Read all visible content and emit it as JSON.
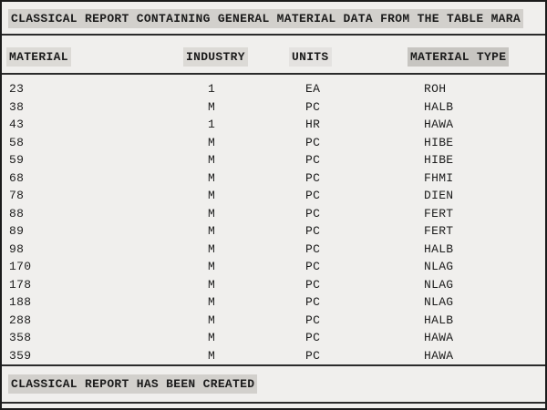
{
  "report": {
    "title": "CLASSICAL REPORT CONTAINING GENERAL MATERIAL DATA FROM THE TABLE MARA",
    "footer": "CLASSICAL REPORT HAS BEEN CREATED",
    "columns": {
      "material": "MATERIAL",
      "industry": "INDUSTRY",
      "units": "UNITS",
      "material_type": "MATERIAL TYPE"
    },
    "rows": [
      {
        "material": "23",
        "industry": "1",
        "units": "EA",
        "material_type": "ROH"
      },
      {
        "material": "38",
        "industry": "M",
        "units": "PC",
        "material_type": "HALB"
      },
      {
        "material": "43",
        "industry": "1",
        "units": "HR",
        "material_type": "HAWA"
      },
      {
        "material": "58",
        "industry": "M",
        "units": "PC",
        "material_type": "HIBE"
      },
      {
        "material": "59",
        "industry": "M",
        "units": "PC",
        "material_type": "HIBE"
      },
      {
        "material": "68",
        "industry": "M",
        "units": "PC",
        "material_type": "FHMI"
      },
      {
        "material": "78",
        "industry": "M",
        "units": "PC",
        "material_type": "DIEN"
      },
      {
        "material": "88",
        "industry": "M",
        "units": "PC",
        "material_type": "FERT"
      },
      {
        "material": "89",
        "industry": "M",
        "units": "PC",
        "material_type": "FERT"
      },
      {
        "material": "98",
        "industry": "M",
        "units": "PC",
        "material_type": "HALB"
      },
      {
        "material": "170",
        "industry": "M",
        "units": "PC",
        "material_type": "NLAG"
      },
      {
        "material": "178",
        "industry": "M",
        "units": "PC",
        "material_type": "NLAG"
      },
      {
        "material": "188",
        "industry": "M",
        "units": "PC",
        "material_type": "NLAG"
      },
      {
        "material": "288",
        "industry": "M",
        "units": "PC",
        "material_type": "HALB"
      },
      {
        "material": "358",
        "industry": "M",
        "units": "PC",
        "material_type": "HAWA"
      },
      {
        "material": "359",
        "industry": "M",
        "units": "PC",
        "material_type": "HAWA"
      }
    ],
    "colors": {
      "page_background": "#f0efed",
      "title_highlight": "#d2d0cc",
      "header_highlight": "#dcdad6",
      "units_header_highlight": "#e4e2e0",
      "material_type_header_highlight": "#c7c5c1",
      "rule": "#2b2b2b",
      "text": "#1c1c1c",
      "border": "#1b1b1b"
    }
  }
}
